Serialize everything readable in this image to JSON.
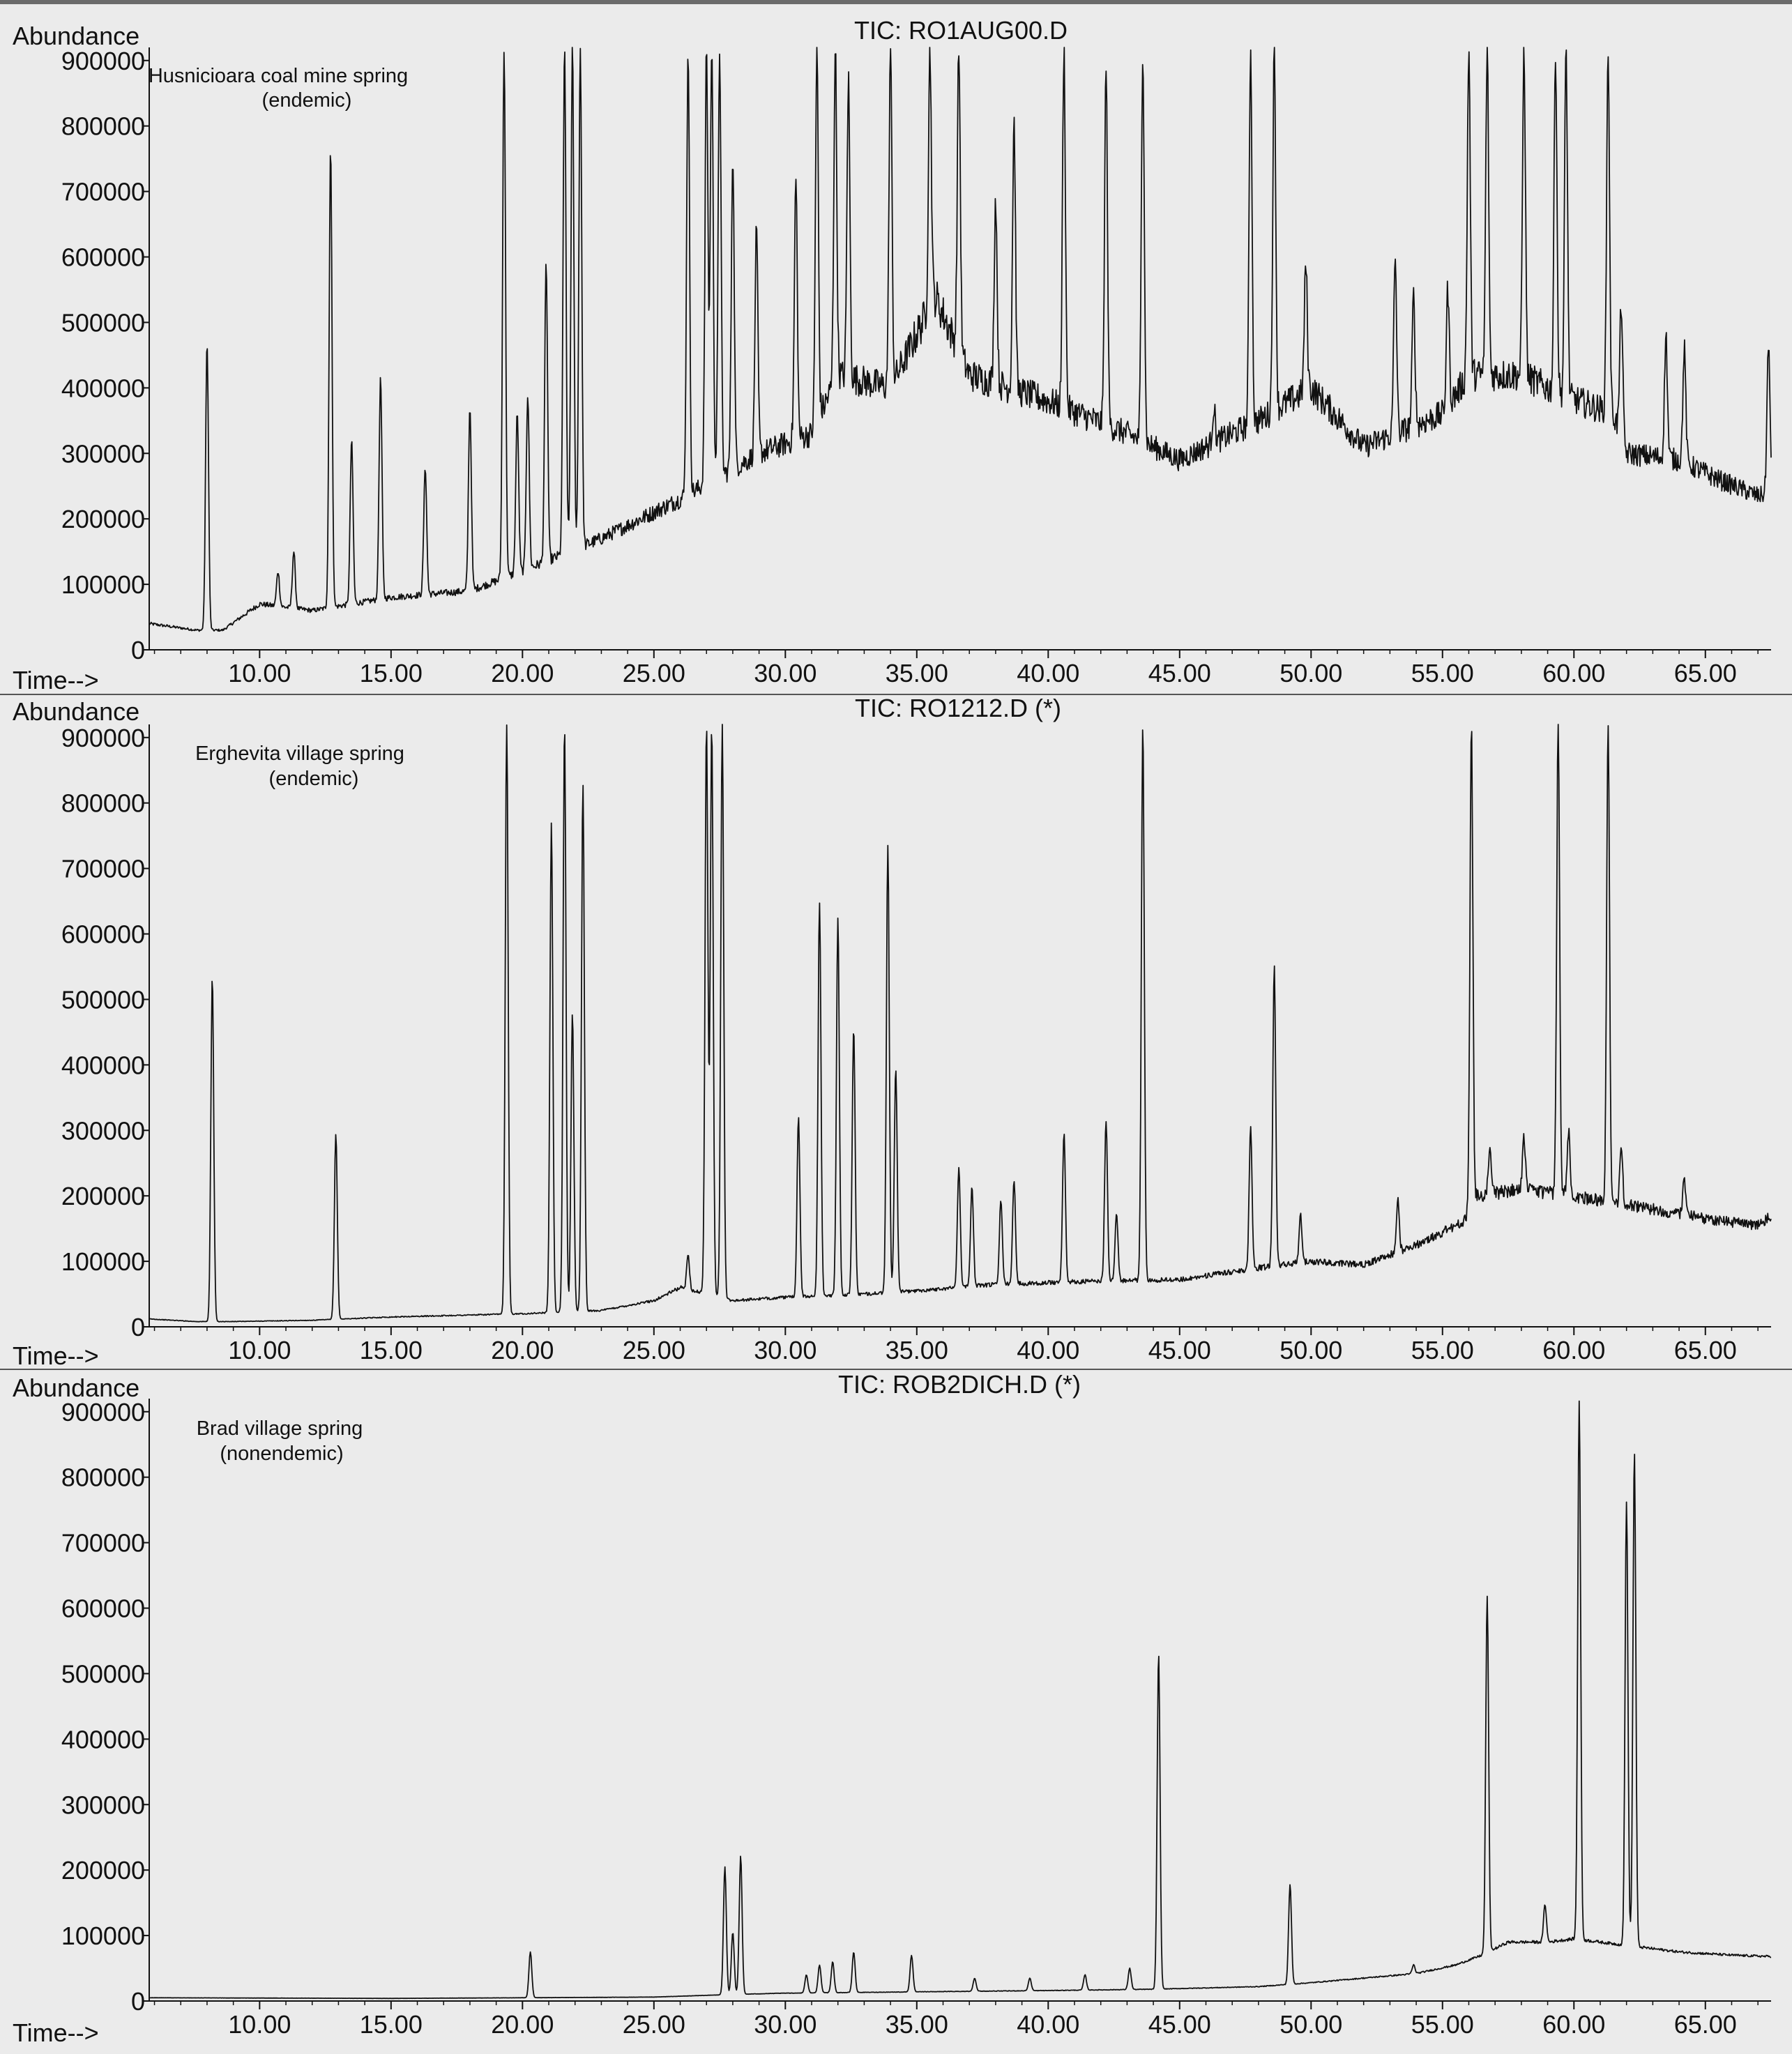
{
  "figure": {
    "background": "#ebebeb",
    "ink": "#111111",
    "border": "#555555"
  },
  "chart_data": [
    {
      "type": "line",
      "title": "TIC: RO1AUG00.D",
      "ylabel": "Abundance",
      "xlabel": "Time-->",
      "annotation": [
        "Husnicioara coal mine spring",
        "(endemic)"
      ],
      "xlim": [
        5.8,
        67.5
      ],
      "ylim": [
        0,
        920000
      ],
      "xticks": [
        "10.00",
        "15.00",
        "20.00",
        "25.00",
        "30.00",
        "35.00",
        "40.00",
        "45.00",
        "50.00",
        "55.00",
        "60.00",
        "65.00"
      ],
      "yticks": [
        "0",
        "100000",
        "200000",
        "300000",
        "400000",
        "500000",
        "600000",
        "700000",
        "800000",
        "900000"
      ],
      "baseline": [
        [
          5.8,
          40000
        ],
        [
          7.6,
          30000
        ],
        [
          8.6,
          30000
        ],
        [
          10,
          70000
        ],
        [
          12,
          60000
        ],
        [
          15,
          80000
        ],
        [
          18,
          90000
        ],
        [
          20,
          120000
        ],
        [
          23,
          170000
        ],
        [
          26,
          230000
        ],
        [
          29,
          300000
        ],
        [
          31,
          330000
        ],
        [
          32,
          420000
        ],
        [
          34,
          400000
        ],
        [
          35.7,
          540000
        ],
        [
          37,
          420000
        ],
        [
          40,
          380000
        ],
        [
          43,
          330000
        ],
        [
          45,
          290000
        ],
        [
          48,
          350000
        ],
        [
          50,
          400000
        ],
        [
          52,
          310000
        ],
        [
          55,
          360000
        ],
        [
          56,
          420000
        ],
        [
          58,
          420000
        ],
        [
          59.5,
          390000
        ],
        [
          61.5,
          360000
        ],
        [
          62,
          300000
        ],
        [
          64,
          290000
        ],
        [
          65.5,
          260000
        ],
        [
          67,
          235000
        ],
        [
          67.5,
          240000
        ]
      ],
      "peaks": [
        [
          8.0,
          470000
        ],
        [
          10.7,
          120000
        ],
        [
          11.3,
          150000
        ],
        [
          12.7,
          770000
        ],
        [
          13.5,
          320000
        ],
        [
          14.6,
          415000
        ],
        [
          16.3,
          280000
        ],
        [
          18.0,
          370000
        ],
        [
          19.3,
          920000
        ],
        [
          19.8,
          360000
        ],
        [
          20.2,
          390000
        ],
        [
          20.9,
          590000
        ],
        [
          21.6,
          920000
        ],
        [
          21.9,
          920000
        ],
        [
          22.2,
          920000
        ],
        [
          26.3,
          920000
        ],
        [
          27.0,
          920000
        ],
        [
          27.2,
          920000
        ],
        [
          27.5,
          920000
        ],
        [
          28.0,
          760000
        ],
        [
          28.9,
          640000
        ],
        [
          30.4,
          720000
        ],
        [
          31.2,
          920000
        ],
        [
          31.9,
          920000
        ],
        [
          32.4,
          870000
        ],
        [
          34.0,
          920000
        ],
        [
          35.5,
          920000
        ],
        [
          36.6,
          920000
        ],
        [
          38.0,
          690000
        ],
        [
          38.7,
          810000
        ],
        [
          40.6,
          920000
        ],
        [
          42.2,
          890000
        ],
        [
          43.6,
          920000
        ],
        [
          46.3,
          370000
        ],
        [
          47.7,
          920000
        ],
        [
          48.6,
          920000
        ],
        [
          49.8,
          590000
        ],
        [
          53.2,
          600000
        ],
        [
          53.9,
          540000
        ],
        [
          55.2,
          550000
        ],
        [
          56.0,
          920000
        ],
        [
          56.7,
          920000
        ],
        [
          58.1,
          920000
        ],
        [
          59.3,
          920000
        ],
        [
          59.7,
          920000
        ],
        [
          61.3,
          920000
        ],
        [
          61.8,
          530000
        ],
        [
          63.5,
          480000
        ],
        [
          64.2,
          460000
        ],
        [
          67.4,
          470000
        ]
      ]
    },
    {
      "type": "line",
      "title": "TIC: RO1212.D (*)",
      "ylabel": "Abundance",
      "xlabel": "Time-->",
      "annotation": [
        "Erghevita village spring",
        "(endemic)"
      ],
      "xlim": [
        5.8,
        67.5
      ],
      "ylim": [
        0,
        920000
      ],
      "xticks": [
        "10.00",
        "15.00",
        "20.00",
        "25.00",
        "30.00",
        "35.00",
        "40.00",
        "45.00",
        "50.00",
        "55.00",
        "60.00",
        "65.00"
      ],
      "yticks": [
        "0",
        "100000",
        "200000",
        "300000",
        "400000",
        "500000",
        "600000",
        "700000",
        "800000",
        "900000"
      ],
      "baseline": [
        [
          5.8,
          12000
        ],
        [
          7.6,
          8000
        ],
        [
          9,
          8000
        ],
        [
          12,
          10000
        ],
        [
          15,
          15000
        ],
        [
          18,
          18000
        ],
        [
          20,
          20000
        ],
        [
          23,
          25000
        ],
        [
          25,
          40000
        ],
        [
          26,
          60000
        ],
        [
          28,
          40000
        ],
        [
          30,
          45000
        ],
        [
          33,
          50000
        ],
        [
          35,
          55000
        ],
        [
          38,
          65000
        ],
        [
          42,
          70000
        ],
        [
          45,
          72000
        ],
        [
          48,
          90000
        ],
        [
          50,
          100000
        ],
        [
          52,
          95000
        ],
        [
          54,
          125000
        ],
        [
          55.8,
          160000
        ],
        [
          56.3,
          200000
        ],
        [
          58,
          210000
        ],
        [
          60,
          200000
        ],
        [
          61.3,
          190000
        ],
        [
          63,
          180000
        ],
        [
          65,
          165000
        ],
        [
          67,
          155000
        ],
        [
          67.5,
          170000
        ]
      ],
      "peaks": [
        [
          8.2,
          535000
        ],
        [
          12.9,
          295000
        ],
        [
          19.4,
          920000
        ],
        [
          21.1,
          770000
        ],
        [
          21.6,
          920000
        ],
        [
          21.9,
          480000
        ],
        [
          22.3,
          830000
        ],
        [
          26.3,
          110000
        ],
        [
          27.0,
          920000
        ],
        [
          27.2,
          920000
        ],
        [
          27.6,
          920000
        ],
        [
          30.5,
          320000
        ],
        [
          31.3,
          650000
        ],
        [
          32.0,
          625000
        ],
        [
          32.6,
          455000
        ],
        [
          33.9,
          735000
        ],
        [
          34.2,
          395000
        ],
        [
          36.6,
          245000
        ],
        [
          37.1,
          215000
        ],
        [
          38.2,
          195000
        ],
        [
          38.7,
          225000
        ],
        [
          40.6,
          295000
        ],
        [
          42.2,
          315000
        ],
        [
          42.6,
          175000
        ],
        [
          43.6,
          920000
        ],
        [
          47.7,
          305000
        ],
        [
          48.6,
          550000
        ],
        [
          49.6,
          170000
        ],
        [
          53.3,
          195000
        ],
        [
          56.1,
          920000
        ],
        [
          56.8,
          265000
        ],
        [
          58.1,
          290000
        ],
        [
          59.4,
          920000
        ],
        [
          59.8,
          300000
        ],
        [
          61.3,
          920000
        ],
        [
          61.8,
          270000
        ],
        [
          64.2,
          225000
        ]
      ]
    },
    {
      "type": "line",
      "title": "TIC: ROB2DICH.D (*)",
      "ylabel": "Abundance",
      "xlabel": "Time-->",
      "annotation": [
        "Brad village spring",
        "(nonendemic)"
      ],
      "xlim": [
        5.8,
        67.5
      ],
      "ylim": [
        0,
        920000
      ],
      "xticks": [
        "10.00",
        "15.00",
        "20.00",
        "25.00",
        "30.00",
        "35.00",
        "40.00",
        "45.00",
        "50.00",
        "55.00",
        "60.00",
        "65.00"
      ],
      "yticks": [
        "0",
        "100000",
        "200000",
        "300000",
        "400000",
        "500000",
        "600000",
        "700000",
        "800000",
        "900000"
      ],
      "baseline": [
        [
          5.8,
          5000
        ],
        [
          15,
          4000
        ],
        [
          25,
          6000
        ],
        [
          28,
          10000
        ],
        [
          30,
          12000
        ],
        [
          35,
          14000
        ],
        [
          40,
          16000
        ],
        [
          44,
          18000
        ],
        [
          48,
          22000
        ],
        [
          50,
          28000
        ],
        [
          52,
          35000
        ],
        [
          54,
          42000
        ],
        [
          55.5,
          55000
        ],
        [
          56.5,
          70000
        ],
        [
          57.5,
          90000
        ],
        [
          59,
          90000
        ],
        [
          60,
          95000
        ],
        [
          62,
          85000
        ],
        [
          64,
          75000
        ],
        [
          66,
          70000
        ],
        [
          67.5,
          68000
        ]
      ],
      "peaks": [
        [
          20.3,
          75000
        ],
        [
          27.7,
          205000
        ],
        [
          28.0,
          105000
        ],
        [
          28.3,
          222000
        ],
        [
          30.8,
          40000
        ],
        [
          31.3,
          55000
        ],
        [
          31.8,
          60000
        ],
        [
          32.6,
          75000
        ],
        [
          34.8,
          70000
        ],
        [
          37.2,
          35000
        ],
        [
          39.3,
          35000
        ],
        [
          41.4,
          40000
        ],
        [
          43.1,
          50000
        ],
        [
          44.2,
          532000
        ],
        [
          49.2,
          178000
        ],
        [
          53.9,
          55000
        ],
        [
          56.7,
          620000
        ],
        [
          58.9,
          148000
        ],
        [
          60.2,
          918000
        ],
        [
          62.0,
          762000
        ],
        [
          62.3,
          840000
        ]
      ]
    }
  ]
}
